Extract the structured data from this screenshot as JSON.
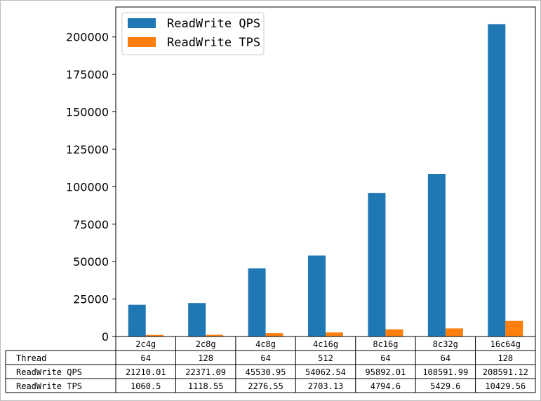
{
  "chart_data": {
    "type": "bar",
    "categories": [
      "2c4g",
      "2c8g",
      "4c8g",
      "4c16g",
      "8c16g",
      "8c32g",
      "16c64g"
    ],
    "series": [
      {
        "name": "ReadWrite QPS",
        "color": "#1f77b4",
        "values": [
          21210.01,
          22371.09,
          45530.95,
          54062.54,
          95892.01,
          108591.99,
          208591.12
        ]
      },
      {
        "name": "ReadWrite TPS",
        "color": "#ff7f0e",
        "values": [
          1060.5,
          1118.55,
          2276.55,
          2703.13,
          4794.6,
          5429.6,
          10429.56
        ]
      }
    ],
    "ylim": [
      0,
      220000
    ],
    "yticks": [
      0,
      25000,
      50000,
      75000,
      100000,
      125000,
      150000,
      175000,
      200000
    ],
    "ytick_labels": [
      "0",
      "25000",
      "50000",
      "75000",
      "100000",
      "125000",
      "150000",
      "175000",
      "200000"
    ],
    "legend_position": "top-left",
    "grid": false
  },
  "table": {
    "columns": [
      "2c4g",
      "2c8g",
      "4c8g",
      "4c16g",
      "8c16g",
      "8c32g",
      "16c64g"
    ],
    "rows": [
      {
        "label": "Thread",
        "cells": [
          "64",
          "128",
          "64",
          "512",
          "64",
          "64",
          "128"
        ]
      },
      {
        "label": "ReadWrite QPS",
        "cells": [
          "21210.01",
          "22371.09",
          "45530.95",
          "54062.54",
          "95892.01",
          "108591.99",
          "208591.12"
        ]
      },
      {
        "label": "ReadWrite TPS",
        "cells": [
          "1060.5",
          "1118.55",
          "2276.55",
          "2703.13",
          "4794.6",
          "5429.6",
          "10429.56"
        ]
      }
    ]
  }
}
